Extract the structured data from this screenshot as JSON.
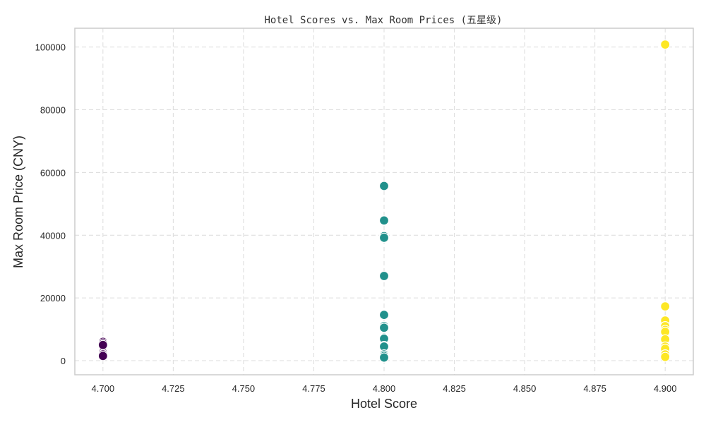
{
  "chart_data": {
    "type": "scatter",
    "title": "Hotel Scores vs. Max Room Prices (五星级)",
    "xlabel": "Hotel Score",
    "ylabel": "Max Room Price (CNY)",
    "xlim": [
      4.69,
      4.91
    ],
    "ylim": [
      -4500,
      106000
    ],
    "xticks": [
      4.7,
      4.725,
      4.75,
      4.775,
      4.8,
      4.825,
      4.85,
      4.875,
      4.9
    ],
    "xtick_labels": [
      "4.700",
      "4.725",
      "4.750",
      "4.775",
      "4.800",
      "4.825",
      "4.850",
      "4.875",
      "4.900"
    ],
    "yticks": [
      0,
      20000,
      40000,
      60000,
      80000,
      100000
    ],
    "ytick_labels": [
      "0",
      "20000",
      "40000",
      "60000",
      "80000",
      "100000"
    ],
    "grid": true,
    "colors": {
      "4.7": "#440154",
      "4.8": "#21918c",
      "4.9": "#fde725"
    },
    "points": [
      {
        "x": 4.7,
        "y": 6000
      },
      {
        "x": 4.7,
        "y": 5500
      },
      {
        "x": 4.7,
        "y": 4800
      },
      {
        "x": 4.7,
        "y": 4200
      },
      {
        "x": 4.7,
        "y": 3500
      },
      {
        "x": 4.7,
        "y": 3000
      },
      {
        "x": 4.7,
        "y": 2500
      },
      {
        "x": 4.7,
        "y": 2000
      },
      {
        "x": 4.7,
        "y": 1500
      },
      {
        "x": 4.7,
        "y": 5000
      },
      {
        "x": 4.8,
        "y": 55700
      },
      {
        "x": 4.8,
        "y": 44700
      },
      {
        "x": 4.8,
        "y": 39700
      },
      {
        "x": 4.8,
        "y": 39200
      },
      {
        "x": 4.8,
        "y": 27000
      },
      {
        "x": 4.8,
        "y": 14600
      },
      {
        "x": 4.8,
        "y": 11000
      },
      {
        "x": 4.8,
        "y": 10500
      },
      {
        "x": 4.8,
        "y": 7300
      },
      {
        "x": 4.8,
        "y": 7000
      },
      {
        "x": 4.8,
        "y": 4700
      },
      {
        "x": 4.8,
        "y": 4500
      },
      {
        "x": 4.8,
        "y": 2000
      },
      {
        "x": 4.8,
        "y": 1500
      },
      {
        "x": 4.8,
        "y": 1000
      },
      {
        "x": 4.9,
        "y": 100800
      },
      {
        "x": 4.9,
        "y": 17300
      },
      {
        "x": 4.9,
        "y": 12800
      },
      {
        "x": 4.9,
        "y": 11000
      },
      {
        "x": 4.9,
        "y": 9800
      },
      {
        "x": 4.9,
        "y": 9200
      },
      {
        "x": 4.9,
        "y": 6800
      },
      {
        "x": 4.9,
        "y": 4500
      },
      {
        "x": 4.9,
        "y": 3800
      },
      {
        "x": 4.9,
        "y": 2000
      },
      {
        "x": 4.9,
        "y": 1200
      }
    ]
  }
}
